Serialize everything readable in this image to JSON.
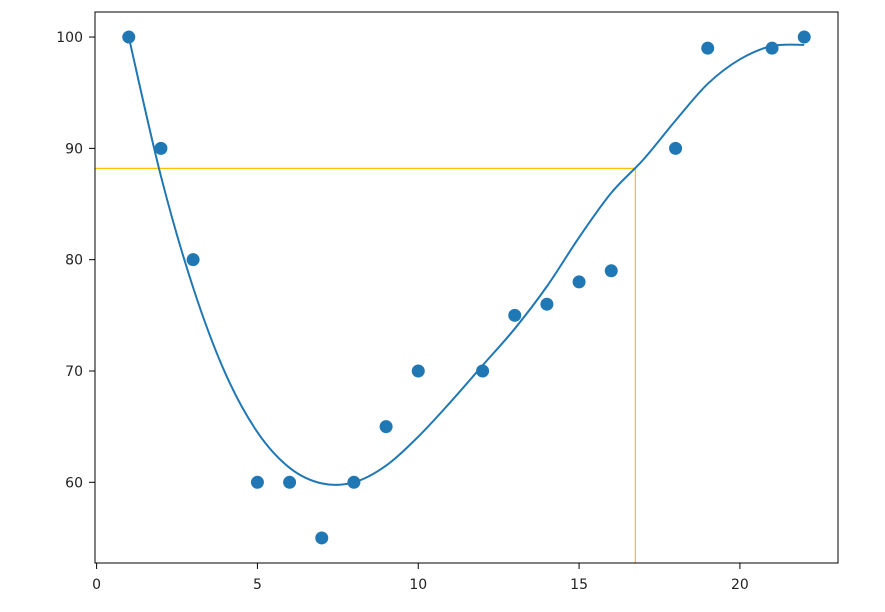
{
  "chart_data": {
    "type": "scatter",
    "title": "",
    "xlabel": "",
    "ylabel": "",
    "xlim": [
      -0.05,
      23.05
    ],
    "ylim": [
      52.75,
      102.25
    ],
    "x_ticks": [
      0,
      5,
      10,
      15,
      20
    ],
    "y_ticks": [
      60,
      70,
      80,
      90,
      100
    ],
    "grid": false,
    "series": [
      {
        "kind": "scatter",
        "color": "#1f77b4",
        "x": [
          1,
          2,
          3,
          5,
          6,
          7,
          8,
          9,
          10,
          12,
          13,
          14,
          15,
          16,
          18,
          19,
          21,
          22
        ],
        "y": [
          100,
          90,
          80,
          60,
          60,
          55,
          60,
          65,
          70,
          70,
          75,
          76,
          78,
          79,
          90,
          99,
          99,
          100
        ]
      },
      {
        "kind": "line",
        "color": "#1f77b4",
        "x": [
          1,
          2,
          3,
          4,
          5,
          6,
          7,
          8,
          9,
          10,
          11,
          12,
          13,
          14,
          15,
          16,
          17,
          18,
          19,
          20,
          21,
          22
        ],
        "y": [
          100,
          87.5,
          77.5,
          69.8,
          64.5,
          61.3,
          59.9,
          60.0,
          61.5,
          64.1,
          67.2,
          70.5,
          73.8,
          77.6,
          82.0,
          86.0,
          89.0,
          92.5,
          95.8,
          98.0,
          99.2,
          99.3
        ]
      }
    ],
    "guide": {
      "color": "#ffc000",
      "x": 16.75,
      "y": 88.2
    }
  }
}
